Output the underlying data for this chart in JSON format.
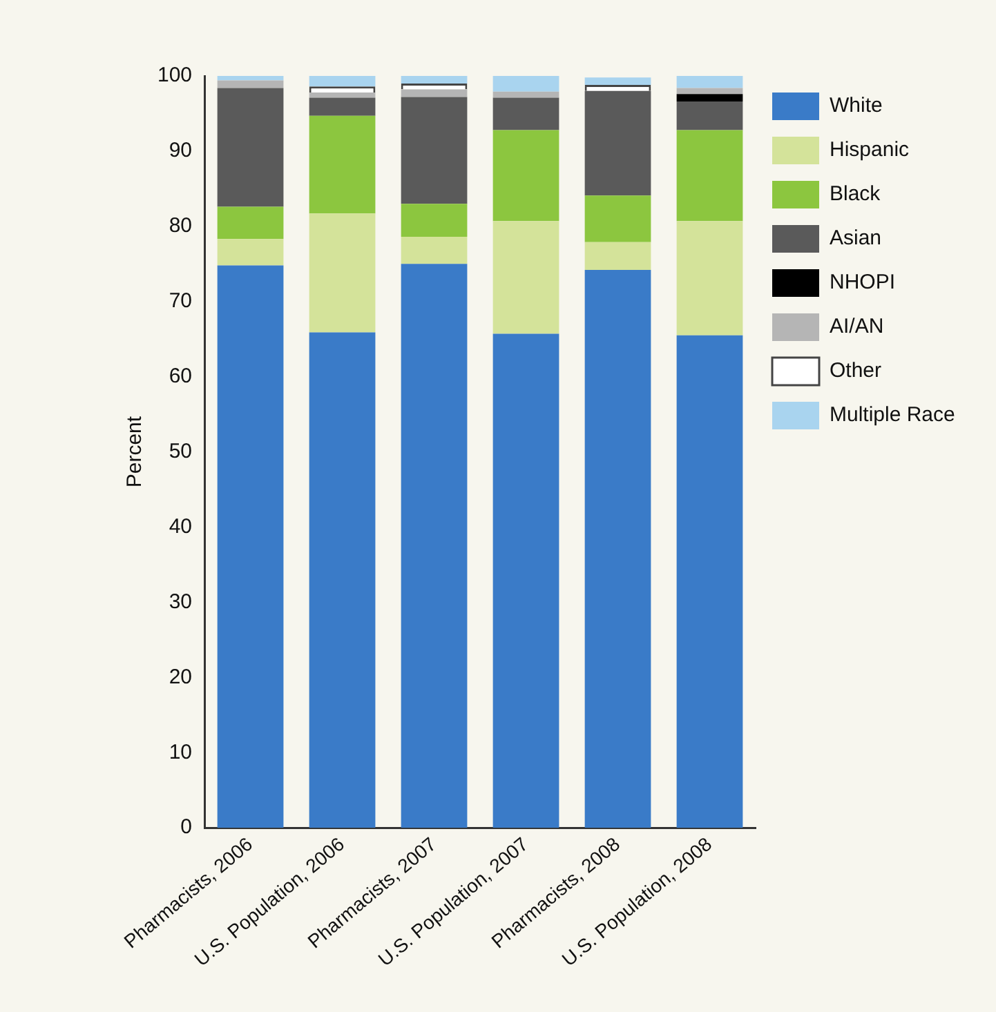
{
  "chart_data": {
    "type": "bar",
    "stacked": true,
    "ylabel": "Percent",
    "categories": [
      "Pharmacists, 2006",
      "U.S. Population, 2006",
      "Pharmacists, 2007",
      "U.S. Population, 2007",
      "Pharmacists, 2008",
      "U.S. Population, 2008"
    ],
    "ylim": [
      0,
      100
    ],
    "yticks": [
      0,
      10,
      20,
      30,
      40,
      50,
      60,
      70,
      80,
      90,
      100
    ],
    "grid": false,
    "legend": "top right",
    "series": [
      {
        "name": "White",
        "color": "#3a7bc8",
        "values": [
          74.8,
          65.9,
          75.0,
          65.7,
          74.2,
          65.5
        ]
      },
      {
        "name": "Hispanic",
        "color": "#d4e39a",
        "values": [
          3.5,
          15.8,
          3.6,
          15.0,
          3.7,
          15.2
        ]
      },
      {
        "name": "Black",
        "color": "#8cc63f",
        "values": [
          4.3,
          13.0,
          4.4,
          12.1,
          6.2,
          12.1
        ]
      },
      {
        "name": "Asian",
        "color": "#5a5a5a",
        "values": [
          15.8,
          2.4,
          14.2,
          4.3,
          13.9,
          3.8
        ]
      },
      {
        "name": "NHOPI",
        "color": "#000000",
        "values": [
          0,
          0,
          0,
          0,
          0,
          1.0
        ]
      },
      {
        "name": "AI/AN",
        "color": "#b5b5b5",
        "values": [
          1.0,
          0.7,
          1.0,
          0.8,
          null,
          0.8
        ]
      },
      {
        "name": "Other",
        "color": "#ffffff",
        "values": [
          0,
          0.8,
          0.8,
          0,
          0.8,
          0
        ]
      },
      {
        "name": "Multiple Race",
        "color": "#a9d4ef",
        "values": [
          0.6,
          1.4,
          1.0,
          2.1,
          1.0,
          1.6
        ]
      }
    ]
  }
}
